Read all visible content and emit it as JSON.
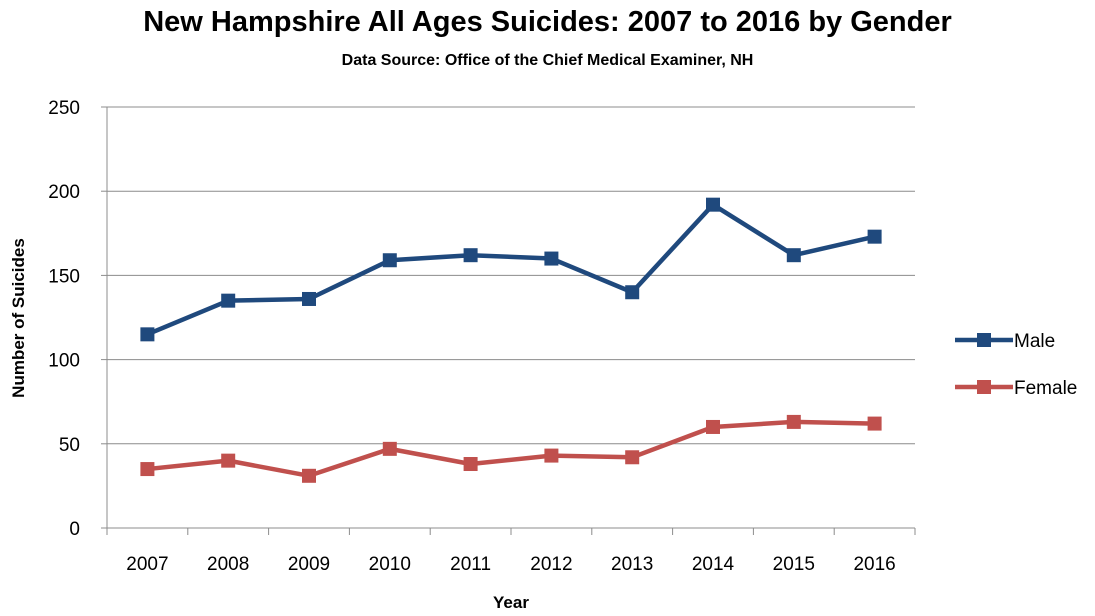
{
  "chart_data": {
    "type": "line",
    "title": "New Hampshire All Ages Suicides: 2007 to 2016 by Gender",
    "subtitle": "Data Source: Office of the Chief Medical Examiner, NH",
    "xlabel": "Year",
    "ylabel": "Number of Suicides",
    "categories": [
      "2007",
      "2008",
      "2009",
      "2010",
      "2011",
      "2012",
      "2013",
      "2014",
      "2015",
      "2016"
    ],
    "ylim": [
      0,
      250
    ],
    "yticks": [
      0,
      50,
      100,
      150,
      200,
      250
    ],
    "grid": true,
    "legend_position": "right",
    "series": [
      {
        "name": "Male",
        "color": "#1F497D",
        "values": [
          115,
          135,
          136,
          159,
          162,
          160,
          140,
          192,
          162,
          173
        ]
      },
      {
        "name": "Female",
        "color": "#C0504D",
        "values": [
          35,
          40,
          31,
          47,
          38,
          43,
          42,
          60,
          63,
          62
        ]
      }
    ]
  }
}
